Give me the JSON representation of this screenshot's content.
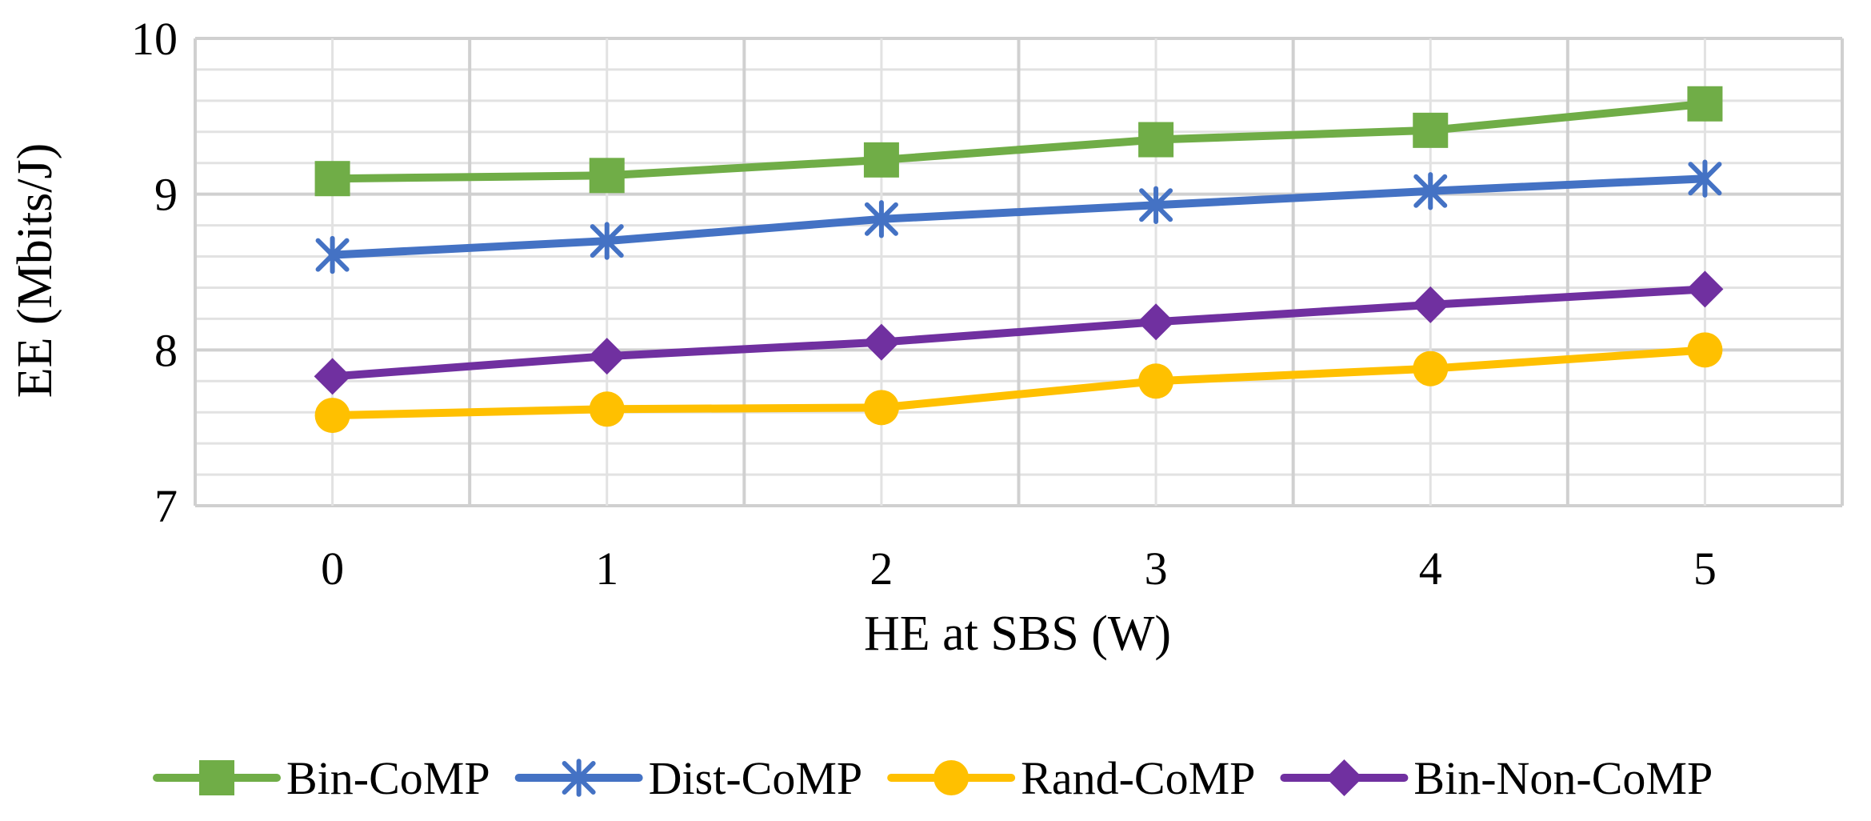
{
  "chart_data": {
    "type": "line",
    "title": "",
    "xlabel": "HE at SBS (W)",
    "ylabel": "EE (Mbits/J)",
    "categories": [
      "0",
      "1",
      "2",
      "3",
      "4",
      "5"
    ],
    "x": [
      0,
      1,
      2,
      3,
      4,
      5
    ],
    "ylim": [
      7,
      10
    ],
    "yticks": [
      "7",
      "8",
      "9",
      "10"
    ],
    "ytick_values": [
      7,
      8,
      9,
      10
    ],
    "grid": true,
    "legend_position": "bottom",
    "series": [
      {
        "name": "Bin-CoMP",
        "marker": "square",
        "color": "#70AD47",
        "values": [
          9.1,
          9.12,
          9.22,
          9.35,
          9.41,
          9.58
        ]
      },
      {
        "name": "Dist-CoMP",
        "marker": "asterisk",
        "color": "#4472C4",
        "values": [
          8.61,
          8.7,
          8.84,
          8.93,
          9.02,
          9.1
        ]
      },
      {
        "name": "Rand-CoMP",
        "marker": "circle",
        "color": "#FFC000",
        "values": [
          7.58,
          7.62,
          7.63,
          7.8,
          7.88,
          8.0
        ]
      },
      {
        "name": "Bin-Non-CoMP",
        "marker": "diamond",
        "color": "#7030A0",
        "values": [
          7.83,
          7.96,
          8.05,
          8.18,
          8.29,
          8.39
        ]
      }
    ]
  }
}
